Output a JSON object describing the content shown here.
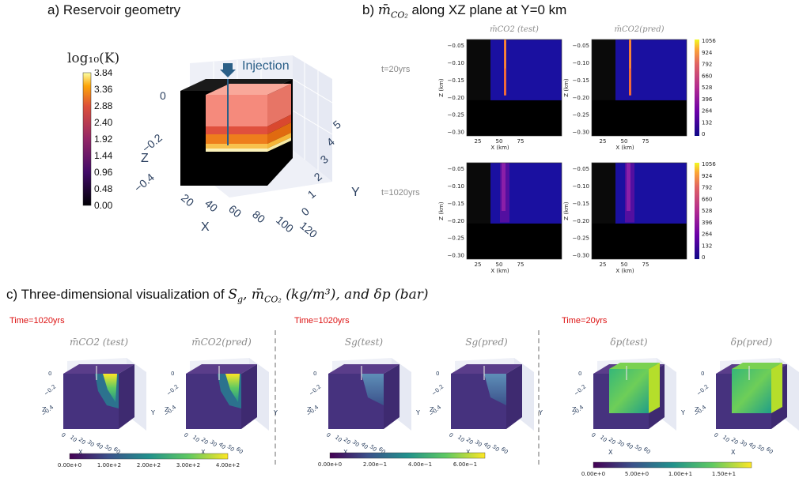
{
  "panel_a": {
    "title": "a) Reservoir geometry",
    "colorbar_label": "log₁₀(K)",
    "colorbar_ticks": [
      "3.84",
      "3.36",
      "2.88",
      "2.40",
      "1.92",
      "1.44",
      "0.96",
      "0.48",
      "0.00"
    ],
    "injection_label": "Injection",
    "axis_z": "Z",
    "axis_x": "X",
    "axis_y": "Y",
    "z_ticks": [
      "0",
      "−0.2",
      "−0.4"
    ],
    "x_ticks": [
      "20",
      "40",
      "60",
      "80",
      "100",
      "120"
    ],
    "y_ticks": [
      "0",
      "1",
      "2",
      "3",
      "4",
      "5"
    ]
  },
  "panel_b": {
    "title_pre": "b) ",
    "title_var": "m̄",
    "title_sub": "CO₂",
    "title_post": " along XZ plane at Y=0 km",
    "col_titles": [
      "m̄CO2 (test)",
      "m̄CO2(pred)"
    ],
    "row_labels": [
      "t=20yrs",
      "t=1020yrs"
    ],
    "y_axis_label": "Z (km)",
    "x_axis_label": "X (km)",
    "y_ticks": [
      "−0.05",
      "−0.10",
      "−0.15",
      "−0.20",
      "−0.25",
      "−0.30"
    ],
    "x_ticks": [
      "25",
      "50",
      "75"
    ],
    "colorbar_ticks": [
      "1056",
      "924",
      "792",
      "660",
      "528",
      "396",
      "264",
      "132",
      "0"
    ]
  },
  "panel_c": {
    "title": "c) Three-dimensional visualization of Sg, m̄CO2 (kg/m³), and δp (bar)",
    "title_parts": {
      "pre": "c) Three-dimensional visualization of ",
      "sg": "S",
      "sg_sub": "g",
      "mid": ",  m̄",
      "m_sub": "CO₂",
      "unit1": " (kg/m³), and ",
      "dp": "δp",
      "unit2": " (bar)"
    },
    "groups": [
      {
        "time": "Time=1020yrs",
        "titles": [
          "m̄CO2 (test)",
          "m̄CO2(pred)"
        ],
        "colorbar_ticks": [
          "0.00e+0",
          "1.00e+2",
          "2.00e+2",
          "3.00e+2",
          "4.00e+2"
        ]
      },
      {
        "time": "Time=1020yrs",
        "titles": [
          "Sg(test)",
          "Sg(pred)"
        ],
        "colorbar_ticks": [
          "0.00e+0",
          "2.00e−1",
          "4.00e−1",
          "6.00e−1"
        ]
      },
      {
        "time": "Time=20yrs",
        "titles": [
          "δp(test)",
          "δp(pred)"
        ],
        "colorbar_ticks": [
          "0.00e+0",
          "5.00e+0",
          "1.00e+1",
          "1.50e+1"
        ]
      }
    ],
    "mini_axes": {
      "z": "Z",
      "x": "X",
      "y": "Y",
      "z_ticks": [
        "0",
        "−0.2",
        "−0.4"
      ],
      "x_ticks": [
        "0",
        "10",
        "20",
        "30",
        "40",
        "50",
        "60"
      ]
    }
  },
  "chart_data": [
    {
      "type": "heatmap",
      "title": "a) Reservoir geometry",
      "colorbar": {
        "label": "log₁₀(K)",
        "range": [
          0.0,
          3.84
        ],
        "ticks": [
          0.0,
          0.48,
          0.96,
          1.44,
          1.92,
          2.4,
          2.88,
          3.36,
          3.84
        ]
      },
      "axes": {
        "x": {
          "label": "X",
          "ticks": [
            20,
            40,
            60,
            80,
            100,
            120
          ]
        },
        "y": {
          "label": "Y",
          "ticks": [
            0,
            1,
            2,
            3,
            4,
            5
          ]
        },
        "z": {
          "label": "Z",
          "ticks": [
            0,
            -0.2,
            -0.4
          ]
        }
      },
      "annotation": "Injection"
    },
    {
      "type": "heatmap",
      "title": "b) m̄CO2 along XZ plane at Y=0 km",
      "rows": [
        "t=20yrs",
        "t=1020yrs"
      ],
      "cols": [
        "m̄CO2 (test)",
        "m̄CO2(pred)"
      ],
      "xlabel": "X (km)",
      "ylabel": "Z (km)",
      "xticks": [
        25,
        50,
        75
      ],
      "yticks": [
        -0.05,
        -0.1,
        -0.15,
        -0.2,
        -0.25,
        -0.3
      ],
      "ylim": [
        -0.3,
        -0.01
      ],
      "colorbar": {
        "range": [
          0,
          1056
        ],
        "ticks": [
          0,
          132,
          264,
          396,
          528,
          660,
          792,
          924,
          1056
        ]
      }
    },
    {
      "type": "heatmap",
      "title": "c) Three-dimensional visualization",
      "panels": [
        {
          "time": "Time=1020yrs",
          "variable": "m̄CO2",
          "titles": [
            "m̄CO2 (test)",
            "m̄CO2(pred)"
          ],
          "colorbar_ticks": [
            0,
            100,
            200,
            300,
            400
          ]
        },
        {
          "time": "Time=1020yrs",
          "variable": "Sg",
          "titles": [
            "Sg(test)",
            "Sg(pred)"
          ],
          "colorbar_ticks": [
            0,
            0.2,
            0.4,
            0.6
          ]
        },
        {
          "time": "Time=20yrs",
          "variable": "δp",
          "titles": [
            "δp(test)",
            "δp(pred)"
          ],
          "colorbar_ticks": [
            0,
            5,
            10,
            15
          ]
        }
      ]
    }
  ]
}
